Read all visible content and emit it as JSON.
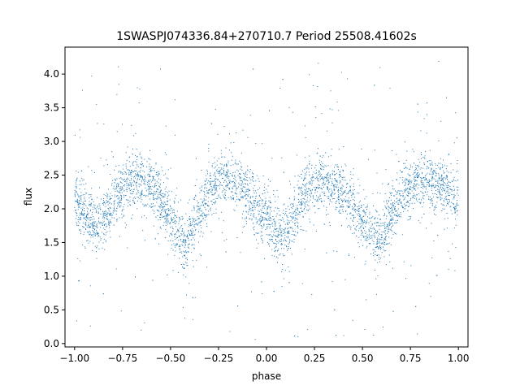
{
  "chart_data": {
    "type": "scatter",
    "title": "1SWASPJ074336.84+270710.7 Period 25508.41602s",
    "xlabel": "phase",
    "ylabel": "flux",
    "xlim": [
      -1.05,
      1.05
    ],
    "ylim": [
      -0.05,
      4.4
    ],
    "xticks": [
      -1.0,
      -0.75,
      -0.5,
      -0.25,
      0.0,
      0.25,
      0.5,
      0.75,
      1.0
    ],
    "xtick_labels": [
      "−1.00",
      "−0.75",
      "−0.50",
      "−0.25",
      "0.00",
      "0.25",
      "0.50",
      "0.75",
      "1.00"
    ],
    "yticks": [
      0.0,
      0.5,
      1.0,
      1.5,
      2.0,
      2.5,
      3.0,
      3.5,
      4.0
    ],
    "ytick_labels": [
      "0.0",
      "0.5",
      "1.0",
      "1.5",
      "2.0",
      "2.5",
      "3.0",
      "3.5",
      "4.0"
    ],
    "grid": false,
    "point_color": "#1f77b4",
    "series": [
      {
        "x": [
          -1.0,
          -0.95,
          -0.9,
          -0.85,
          -0.8,
          -0.75,
          -0.7,
          -0.65,
          -0.6,
          -0.55,
          -0.5,
          -0.45,
          -0.42,
          -0.4,
          -0.35,
          -0.3,
          -0.25,
          -0.2,
          -0.15,
          -0.1,
          -0.05,
          0.0,
          0.05,
          0.08,
          0.1,
          0.15,
          0.2,
          0.25,
          0.3,
          0.35,
          0.4,
          0.45,
          0.5,
          0.55,
          0.58,
          0.6,
          0.65,
          0.7,
          0.75,
          0.8,
          0.85,
          0.9,
          0.95,
          1.0
        ],
        "y": [
          2.1,
          1.95,
          1.75,
          1.85,
          2.1,
          2.3,
          2.42,
          2.45,
          2.35,
          2.15,
          1.85,
          1.6,
          1.45,
          1.6,
          1.95,
          2.25,
          2.38,
          2.45,
          2.4,
          2.25,
          2.0,
          1.8,
          1.62,
          1.55,
          1.62,
          1.95,
          2.25,
          2.4,
          2.45,
          2.4,
          2.25,
          2.05,
          1.8,
          1.6,
          1.5,
          1.58,
          1.9,
          2.2,
          2.35,
          2.4,
          2.4,
          2.35,
          2.25,
          2.15
        ]
      }
    ]
  }
}
